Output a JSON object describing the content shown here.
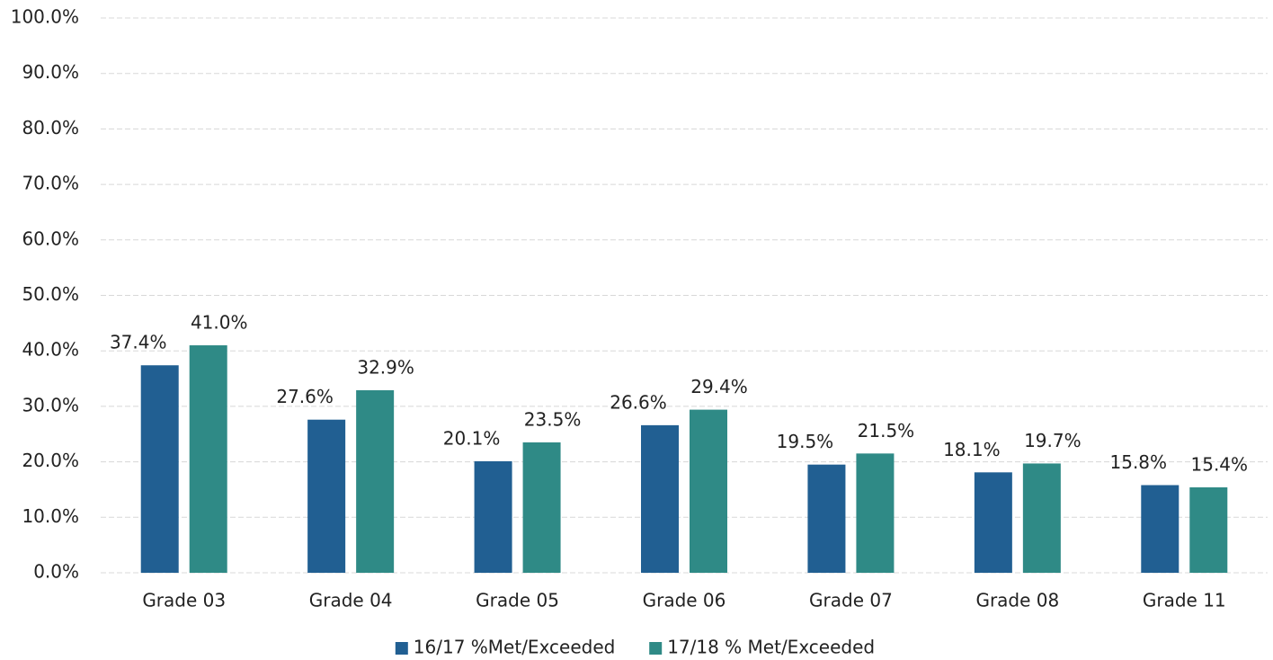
{
  "chart_data": {
    "type": "bar",
    "categories": [
      "Grade 03",
      "Grade 04",
      "Grade 05",
      "Grade 06",
      "Grade 07",
      "Grade 08",
      "Grade 11"
    ],
    "series": [
      {
        "name": "16/17 %Met/Exceeded",
        "color": "#215f92",
        "values": [
          37.4,
          27.6,
          20.1,
          26.6,
          19.5,
          18.1,
          15.8
        ],
        "value_labels": [
          "37.4%",
          "27.6%",
          "20.1%",
          "26.6%",
          "19.5%",
          "18.1%",
          "15.8%"
        ]
      },
      {
        "name": "17/18 % Met/Exceeded",
        "color": "#2f8a86",
        "values": [
          41.0,
          32.9,
          23.5,
          29.4,
          21.5,
          19.7,
          15.4
        ],
        "value_labels": [
          "41.0%",
          "32.9%",
          "23.5%",
          "29.4%",
          "21.5%",
          "19.7%",
          "15.4%"
        ]
      }
    ],
    "ylim": [
      0,
      100
    ],
    "yticks": [
      {
        "value": 0,
        "label": "0.0%"
      },
      {
        "value": 10,
        "label": "10.0%"
      },
      {
        "value": 20,
        "label": "20.0%"
      },
      {
        "value": 30,
        "label": "30.0%"
      },
      {
        "value": 40,
        "label": "40.0%"
      },
      {
        "value": 50,
        "label": "50.0%"
      },
      {
        "value": 60,
        "label": "60.0%"
      },
      {
        "value": 70,
        "label": "70.0%"
      },
      {
        "value": 80,
        "label": "80.0%"
      },
      {
        "value": 90,
        "label": "90.0%"
      },
      {
        "value": 100,
        "label": "100.0%"
      }
    ],
    "grid": true,
    "legend": "bottom"
  }
}
